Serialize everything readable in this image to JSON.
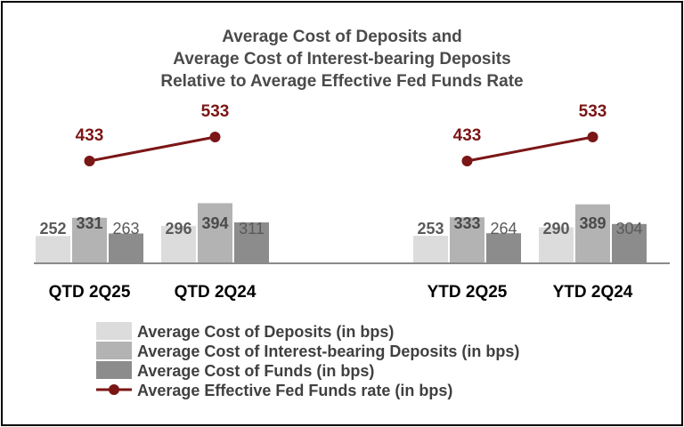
{
  "colors": {
    "deposits": "#dcdcdc",
    "interest_bearing": "#b3b3b3",
    "funds": "#8c8c8c",
    "fed_funds": "#7b1616",
    "axis": "#8a8a8a",
    "label_dark": "#4a4a4a",
    "label_light": "#5a5a5a"
  },
  "chart_data": {
    "type": "bar",
    "title": [
      "Average Cost of Deposits and",
      "Average Cost of Interest-bearing Deposits",
      "Relative to Average Effective Fed Funds Rate"
    ],
    "categories": [
      "QTD 2Q25",
      "QTD 2Q24",
      "YTD 2Q25",
      "YTD 2Q24"
    ],
    "series": [
      {
        "name": "Average Cost of Deposits (in bps)",
        "type": "bar",
        "values": [
          252,
          296,
          253,
          290
        ]
      },
      {
        "name": "Average Cost of Interest-bearing Deposits (in bps)",
        "type": "bar",
        "values": [
          331,
          394,
          333,
          389
        ]
      },
      {
        "name": "Average Cost of Funds (in bps)",
        "type": "bar",
        "values": [
          263,
          311,
          264,
          304
        ]
      },
      {
        "name": "Average Effective Fed Funds rate (in bps)",
        "type": "line",
        "values": [
          433,
          533,
          433,
          533
        ],
        "line_groups": [
          [
            0,
            1
          ],
          [
            2,
            3
          ]
        ]
      }
    ],
    "xlabel": "",
    "ylabel": "",
    "legend_position": "bottom-center",
    "grid": false
  }
}
